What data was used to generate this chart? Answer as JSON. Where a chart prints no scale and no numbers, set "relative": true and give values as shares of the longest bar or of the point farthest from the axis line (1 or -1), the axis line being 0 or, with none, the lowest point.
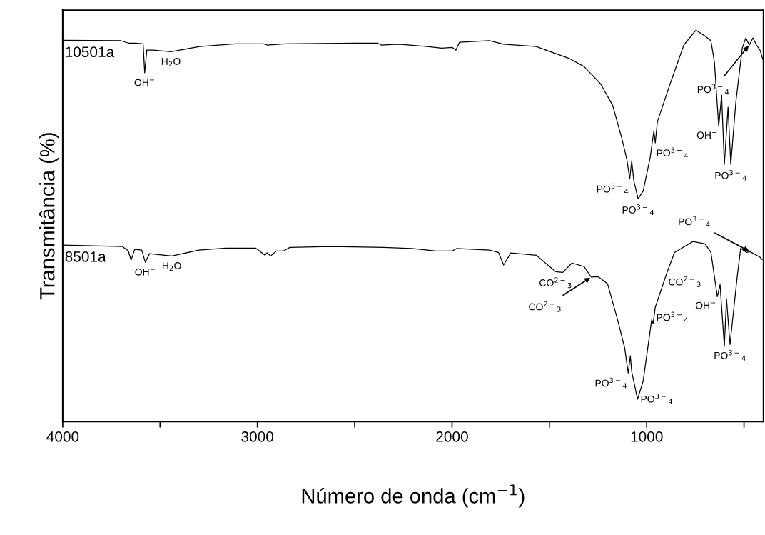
{
  "chart_data": {
    "type": "line",
    "relative": true,
    "xlabel": "Número de onda (cm$^{−1}$)",
    "ylabel": "Transmitância (%)",
    "xlim": [
      4000,
      400
    ],
    "xticks": [
      4000,
      {
        "value": 3500,
        "label": null
      },
      3000,
      {
        "value": 2500,
        "label": null
      },
      2000,
      {
        "value": 1500,
        "label": null
      },
      1000,
      {
        "value": 500,
        "label": null
      }
    ],
    "tick_labels": "x",
    "grid": false,
    "legend": false,
    "marker": "none",
    "line_style": "solid",
    "series": [
      {
        "name": "10501a",
        "color": "#000000",
        "x": [
          4000,
          3700,
          3663,
          3627,
          3587,
          3579,
          3568,
          3535,
          3444,
          3297,
          3115,
          2968,
          2950,
          2858,
          2492,
          2383,
          2364,
          2273,
          2127,
          2053,
          1999,
          1980,
          1962,
          1808,
          1735,
          1567,
          1395,
          1322,
          1237,
          1175,
          1128,
          1102,
          1087,
          1077,
          1066,
          1044,
          1018,
          982,
          963,
          956,
          945,
          883,
          809,
          747,
          700,
          670,
          652,
          630,
          615,
          601,
          582,
          568,
          542,
          509,
          491,
          473,
          454,
          436,
          418,
          403
        ],
        "values": [
          0.974,
          0.973,
          0.967,
          0.967,
          0.965,
          0.891,
          0.949,
          0.949,
          0.945,
          0.958,
          0.965,
          0.965,
          0.962,
          0.965,
          0.967,
          0.967,
          0.962,
          0.964,
          0.958,
          0.954,
          0.956,
          0.949,
          0.969,
          0.973,
          0.964,
          0.958,
          0.927,
          0.907,
          0.863,
          0.808,
          0.724,
          0.67,
          0.62,
          0.666,
          0.615,
          0.569,
          0.589,
          0.675,
          0.743,
          0.712,
          0.766,
          0.858,
          0.962,
          1.0,
          0.985,
          0.973,
          0.918,
          0.754,
          0.834,
          0.657,
          0.803,
          0.657,
          0.816,
          0.954,
          0.98,
          0.962,
          0.98,
          0.962,
          0.949,
          0.925
        ]
      },
      {
        "name": "8501a",
        "color": "#000000",
        "x": [
          4000,
          3693,
          3663,
          3649,
          3630,
          3594,
          3576,
          3554,
          3440,
          3301,
          3162,
          3008,
          2961,
          2950,
          2932,
          2902,
          2866,
          2833,
          2628,
          2350,
          2207,
          2083,
          1999,
          1977,
          1808,
          1761,
          1735,
          1698,
          1567,
          1468,
          1431,
          1384,
          1322,
          1285,
          1248,
          1201,
          1150,
          1113,
          1095,
          1084,
          1077,
          1047,
          1018,
          974,
          967,
          956,
          894,
          857,
          762,
          700,
          670,
          637,
          623,
          601,
          590,
          572,
          535,
          517,
          487,
          469,
          418,
          407
        ],
        "values": [
          0.451,
          0.447,
          0.436,
          0.412,
          0.44,
          0.438,
          0.407,
          0.429,
          0.423,
          0.438,
          0.443,
          0.443,
          0.425,
          0.431,
          0.423,
          0.436,
          0.436,
          0.445,
          0.447,
          0.445,
          0.442,
          0.436,
          0.436,
          0.442,
          0.438,
          0.432,
          0.4,
          0.431,
          0.425,
          0.383,
          0.381,
          0.405,
          0.396,
          0.369,
          0.37,
          0.352,
          0.261,
          0.188,
          0.124,
          0.168,
          0.128,
          0.057,
          0.104,
          0.261,
          0.25,
          0.292,
          0.383,
          0.432,
          0.46,
          0.454,
          0.432,
          0.319,
          0.35,
          0.192,
          0.314,
          0.197,
          0.37,
          0.443,
          0.432,
          0.434,
          0.42,
          0.414
        ]
      }
    ],
    "annotations": [
      {
        "text": "OH$^{−}$",
        "x": 3579,
        "y": 0.891
      },
      {
        "text": "H$_{2}$O",
        "x": 3444,
        "y": 0.945
      },
      {
        "text": "PO$^{3−}$$_{4}$",
        "x": 1087,
        "y": 0.62
      },
      {
        "text": "PO$^{3−}$$_{4}$",
        "x": 1044,
        "y": 0.569
      },
      {
        "text": "PO$^{3−}$$_{4}$",
        "x": 956,
        "y": 0.712
      },
      {
        "text": "OH$^{−}$",
        "x": 630,
        "y": 0.754
      },
      {
        "text": "PO$^{3−}$$_{4}$",
        "x": 568,
        "y": 0.657
      },
      {
        "text": "PO$^{3−}$$_{4}$",
        "x": 473,
        "y": 0.962
      },
      {
        "text": "OH$^{−}$",
        "x": 3576,
        "y": 0.407
      },
      {
        "text": "H$_{2}$O",
        "x": 3440,
        "y": 0.423
      },
      {
        "text": "CO$^{2−}$$_{3}$",
        "x": 1468,
        "y": 0.383
      },
      {
        "text": "CO$^{2−}$$_{3}$",
        "x": 1285,
        "y": 0.369
      },
      {
        "text": "CO$^{2−}$$_{3}$",
        "x": 894,
        "y": 0.383
      },
      {
        "text": "PO$^{3−}$$_{4}$",
        "x": 1095,
        "y": 0.124
      },
      {
        "text": "PO$^{3−}$$_{4}$",
        "x": 1047,
        "y": 0.057
      },
      {
        "text": "PO$^{3−}$$_{4}$",
        "x": 956,
        "y": 0.292
      },
      {
        "text": "OH$^{−}$",
        "x": 637,
        "y": 0.319
      },
      {
        "text": "PO$^{3−}$$_{4}$",
        "x": 572,
        "y": 0.197
      },
      {
        "text": "PO$^{3−}$$_{4}$",
        "x": 469,
        "y": 0.434
      }
    ]
  }
}
